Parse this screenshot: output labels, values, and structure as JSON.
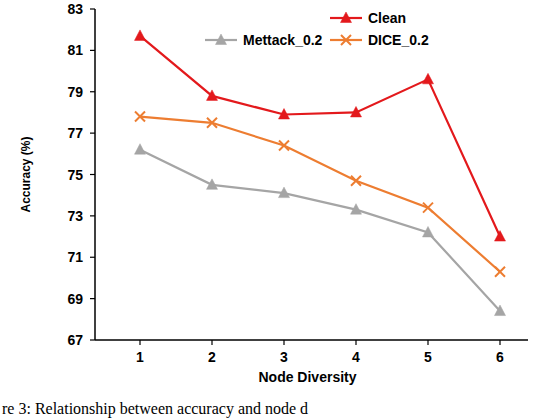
{
  "chart_data": {
    "type": "line",
    "x_label": "Node Diversity",
    "y_label": "Accuracy (%)",
    "caption": "re 3: Relationship between accuracy and node d",
    "categories": [
      "1",
      "2",
      "3",
      "4",
      "5",
      "6"
    ],
    "series": [
      {
        "name": "Clean",
        "color": "#e3191c",
        "marker": "triangle",
        "values": [
          81.7,
          78.8,
          77.9,
          78.0,
          79.6,
          72.0
        ]
      },
      {
        "name": "DICE_0.2",
        "color": "#ed7d31",
        "marker": "x",
        "values": [
          77.8,
          77.5,
          76.4,
          74.7,
          73.4,
          70.3
        ]
      },
      {
        "name": "Mettack_0.2",
        "color": "#a5a5a5",
        "marker": "triangle",
        "values": [
          76.2,
          74.5,
          74.1,
          73.3,
          72.2,
          68.4
        ]
      }
    ],
    "ylim": [
      67,
      83
    ],
    "yticks": [
      67,
      69,
      71,
      73,
      75,
      77,
      79,
      81,
      83
    ],
    "grid": false,
    "legend": "upper right"
  }
}
